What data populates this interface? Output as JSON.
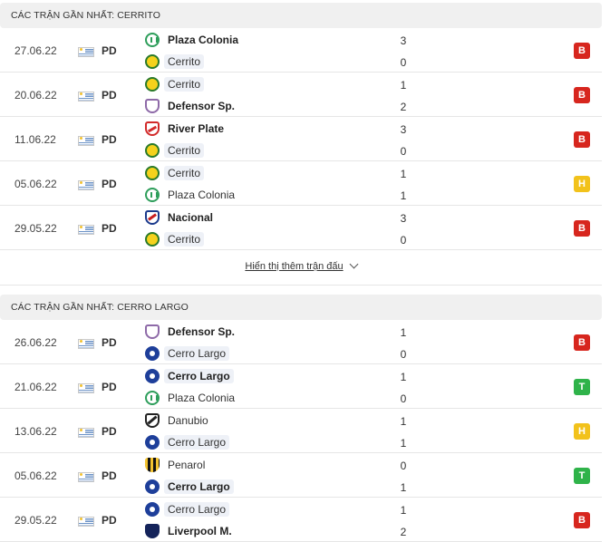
{
  "section_a": {
    "title": "CÁC TRẬN GẦN NHẤT: CERRITO",
    "matches": [
      {
        "date": "27.06.22",
        "league": "PD",
        "home": "Plaza Colonia",
        "home_logo": "plaza-colonia-icon",
        "away": "Cerrito",
        "away_logo": "cerrito-icon",
        "home_score": "3",
        "away_score": "0",
        "result": "B",
        "result_color": "#d7261e",
        "winner": "home"
      },
      {
        "date": "20.06.22",
        "league": "PD",
        "home": "Cerrito",
        "home_logo": "cerrito-icon",
        "away": "Defensor Sp.",
        "away_logo": "defensor-icon",
        "home_score": "1",
        "away_score": "2",
        "result": "B",
        "result_color": "#d7261e",
        "winner": "away"
      },
      {
        "date": "11.06.22",
        "league": "PD",
        "home": "River Plate",
        "home_logo": "river-plate-icon",
        "away": "Cerrito",
        "away_logo": "cerrito-icon",
        "home_score": "3",
        "away_score": "0",
        "result": "B",
        "result_color": "#d7261e",
        "winner": "home"
      },
      {
        "date": "05.06.22",
        "league": "PD",
        "home": "Cerrito",
        "home_logo": "cerrito-icon",
        "away": "Plaza Colonia",
        "away_logo": "plaza-colonia-icon",
        "home_score": "1",
        "away_score": "1",
        "result": "H",
        "result_color": "#f2c21b",
        "winner": "none"
      },
      {
        "date": "29.05.22",
        "league": "PD",
        "home": "Nacional",
        "home_logo": "nacional-icon",
        "away": "Cerrito",
        "away_logo": "cerrito-icon",
        "home_score": "3",
        "away_score": "0",
        "result": "B",
        "result_color": "#d7261e",
        "winner": "home"
      }
    ],
    "show_more": "Hiển thị thêm trận đấu"
  },
  "section_b": {
    "title": "CÁC TRẬN GẦN NHẤT: CERRO LARGO",
    "matches": [
      {
        "date": "26.06.22",
        "league": "PD",
        "home": "Defensor Sp.",
        "home_logo": "defensor-icon",
        "away": "Cerro Largo",
        "away_logo": "cerro-largo-icon",
        "home_score": "1",
        "away_score": "0",
        "result": "B",
        "result_color": "#d7261e",
        "winner": "home"
      },
      {
        "date": "21.06.22",
        "league": "PD",
        "home": "Cerro Largo",
        "home_logo": "cerro-largo-icon",
        "away": "Plaza Colonia",
        "away_logo": "plaza-colonia-icon",
        "home_score": "1",
        "away_score": "0",
        "result": "T",
        "result_color": "#2fb34a",
        "winner": "home"
      },
      {
        "date": "13.06.22",
        "league": "PD",
        "home": "Danubio",
        "home_logo": "danubio-icon",
        "away": "Cerro Largo",
        "away_logo": "cerro-largo-icon",
        "home_score": "1",
        "away_score": "1",
        "result": "H",
        "result_color": "#f2c21b",
        "winner": "none"
      },
      {
        "date": "05.06.22",
        "league": "PD",
        "home": "Penarol",
        "home_logo": "penarol-icon",
        "away": "Cerro Largo",
        "away_logo": "cerro-largo-icon",
        "home_score": "0",
        "away_score": "1",
        "result": "T",
        "result_color": "#2fb34a",
        "winner": "away"
      },
      {
        "date": "29.05.22",
        "league": "PD",
        "home": "Cerro Largo",
        "home_logo": "cerro-largo-icon",
        "away": "Liverpool M.",
        "away_logo": "liverpool-icon",
        "home_score": "1",
        "away_score": "2",
        "result": "B",
        "result_color": "#d7261e",
        "winner": "away"
      }
    ]
  }
}
